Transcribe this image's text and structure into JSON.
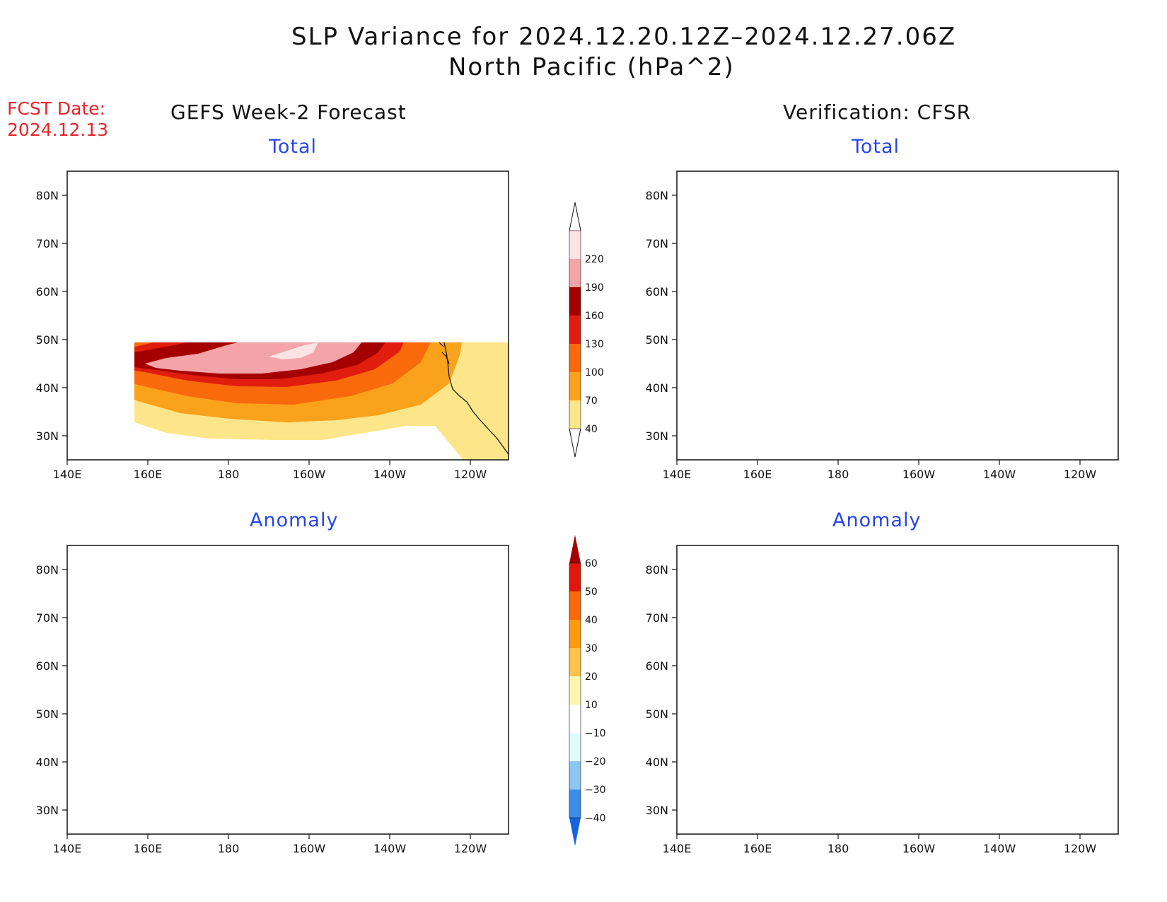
{
  "title": {
    "line1": "SLP Variance for 2024.12.20.12Z–2024.12.27.06Z",
    "line2": "North Pacific (hPa^2)"
  },
  "fcst": {
    "line1": "FCST Date:",
    "line2": "2024.12.13"
  },
  "headers": {
    "left": "GEFS Week-2 Forecast",
    "right": "Verification: CFSR"
  },
  "panel_titles": {
    "total": "Total",
    "anomaly": "Anomaly"
  },
  "axes": {
    "lon_labels": [
      "140E",
      "160E",
      "180",
      "160W",
      "140W",
      "120W"
    ],
    "lat_labels": [
      "30N",
      "40N",
      "50N",
      "60N",
      "70N",
      "80N"
    ]
  },
  "colorbars": {
    "total": {
      "levels": [
        40,
        70,
        100,
        130,
        160,
        190,
        220
      ],
      "colors": [
        "#fde68a",
        "#fba21c",
        "#f86a0c",
        "#e11d0e",
        "#a50000",
        "#f4a3a8",
        "#fde3e3"
      ]
    },
    "anomaly": {
      "levels": [
        -40,
        -30,
        -20,
        -10,
        10,
        20,
        30,
        40,
        50,
        60
      ],
      "colors": [
        "#1664e0",
        "#3a8de8",
        "#8cc6f2",
        "#e0fbff",
        "#ffffff",
        "#fef6b0",
        "#ffc24a",
        "#fd9a0e",
        "#fb6808",
        "#e0180b",
        "#a30000"
      ]
    }
  },
  "colors": {
    "land": "#ffffff",
    "coast": "#111111",
    "frame": "#111111"
  }
}
